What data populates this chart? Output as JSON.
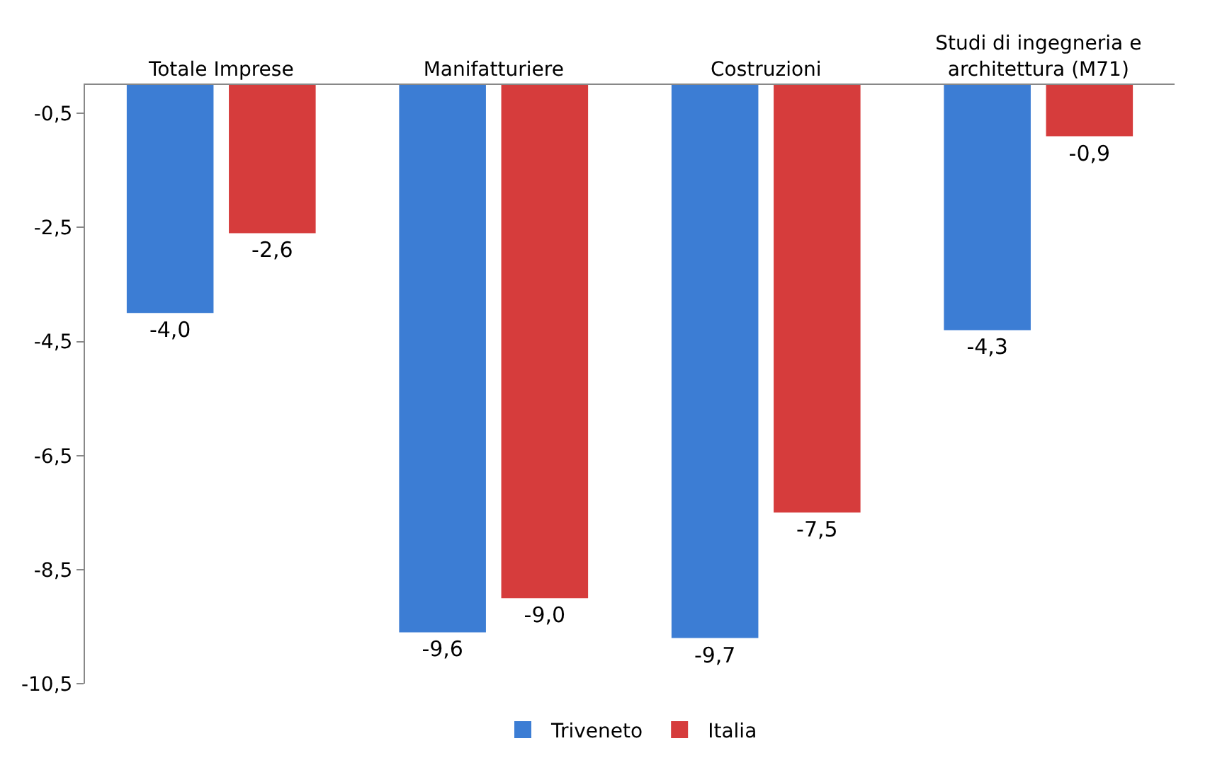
{
  "chart_data": {
    "type": "bar",
    "categories": [
      "Totale Imprese",
      "Manifatturiere",
      "Costruzioni",
      "Studi di ingegneria e architettura (M71)"
    ],
    "series": [
      {
        "name": "Triveneto",
        "color": "#3c7dd4",
        "values": [
          -4.0,
          -9.6,
          -9.7,
          -4.3
        ],
        "value_labels": [
          "-4,0",
          "-9,6",
          "-9,7",
          "-4,3"
        ]
      },
      {
        "name": "Italia",
        "color": "#d63c3c",
        "values": [
          -2.6,
          -9.0,
          -7.5,
          -0.9
        ],
        "value_labels": [
          "-2,6",
          "-9,0",
          "-7,5",
          "-0,9"
        ]
      }
    ],
    "ylim": [
      -10.5,
      0
    ],
    "yticks": [
      {
        "value": -0.5,
        "label": "-0,5"
      },
      {
        "value": -2.5,
        "label": "-2,5"
      },
      {
        "value": -4.5,
        "label": "-4,5"
      },
      {
        "value": -6.5,
        "label": "-6,5"
      },
      {
        "value": -8.5,
        "label": "-8,5"
      },
      {
        "value": -10.5,
        "label": "-10,5"
      }
    ],
    "legend": "bottom"
  }
}
